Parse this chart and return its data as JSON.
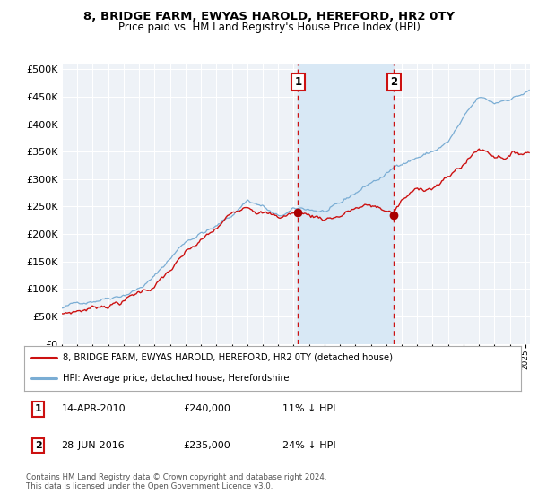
{
  "title": "8, BRIDGE FARM, EWYAS HAROLD, HEREFORD, HR2 0TY",
  "subtitle": "Price paid vs. HM Land Registry's House Price Index (HPI)",
  "hpi_label": "HPI: Average price, detached house, Herefordshire",
  "property_label": "8, BRIDGE FARM, EWYAS HAROLD, HEREFORD, HR2 0TY (detached house)",
  "footer": "Contains HM Land Registry data © Crown copyright and database right 2024.\nThis data is licensed under the Open Government Licence v3.0.",
  "transaction1": {
    "label": "1",
    "date": "14-APR-2010",
    "price": 240000,
    "hpi_diff": "11% ↓ HPI"
  },
  "transaction2": {
    "label": "2",
    "date": "28-JUN-2016",
    "price": 235000,
    "hpi_diff": "24% ↓ HPI"
  },
  "ylim": [
    0,
    510000
  ],
  "yticks": [
    0,
    50000,
    100000,
    150000,
    200000,
    250000,
    300000,
    350000,
    400000,
    450000,
    500000
  ],
  "background_color": "#ffffff",
  "plot_bg_color": "#eef2f7",
  "hpi_color": "#7aadd4",
  "property_color": "#cc1111",
  "marker_color": "#aa0000",
  "vline_color": "#cc1111",
  "shade_color": "#d8e8f5",
  "grid_color": "#ffffff",
  "transaction1_x": 2010.29,
  "transaction2_x": 2016.49,
  "xmin": 1995,
  "xmax": 2025.3
}
